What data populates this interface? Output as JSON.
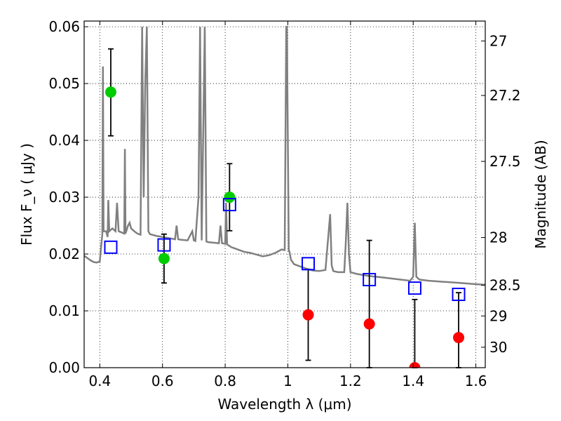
{
  "chart_data": {
    "type": "scatter",
    "xlabel": "Wavelength λ (μm)",
    "ylabel": "Flux F_ν ( μJy )",
    "y2label": "Magnitude (AB)",
    "xlim": [
      0.35,
      1.63
    ],
    "ylim": [
      0.0,
      0.061
    ],
    "xticks": [
      0.4,
      0.6,
      0.8,
      1.0,
      1.2,
      1.4,
      1.6
    ],
    "xtick_labels": [
      "0.4",
      "0.6",
      "0.8",
      "1",
      "1.2",
      "1.4",
      "1.6"
    ],
    "yticks": [
      0.0,
      0.01,
      0.02,
      0.03,
      0.04,
      0.05,
      0.06
    ],
    "ytick_labels": [
      "0.00",
      "0.01",
      "0.02",
      "0.03",
      "0.04",
      "0.05",
      "0.06"
    ],
    "y2ticks": [
      {
        "flux": 0.0575,
        "label": "27"
      },
      {
        "flux": 0.0479,
        "label": "27.2"
      },
      {
        "flux": 0.0363,
        "label": "27.5"
      },
      {
        "flux": 0.0229,
        "label": "28"
      },
      {
        "flux": 0.0145,
        "label": "28.5"
      },
      {
        "flux": 0.0091,
        "label": "29"
      },
      {
        "flux": 0.0036,
        "label": "30"
      }
    ],
    "grid": true,
    "colors": {
      "spectrum": "#808080",
      "green_points": "#00cc00",
      "red_points": "#ff0000",
      "model_squares": "#0000ff",
      "errorbars": "#000000"
    },
    "series": [
      {
        "marker": "green-circle",
        "points": [
          {
            "x": 0.435,
            "y": 0.0485,
            "ylo": 0.0408,
            "yhi": 0.0561
          },
          {
            "x": 0.605,
            "y": 0.0192,
            "ylo": 0.0149,
            "yhi": 0.0235
          },
          {
            "x": 0.814,
            "y": 0.03,
            "ylo": 0.0241,
            "yhi": 0.0359
          }
        ]
      },
      {
        "marker": "red-circle",
        "points": [
          {
            "x": 1.065,
            "y": 0.0093,
            "ylo": 0.0013,
            "yhi": 0.0173
          },
          {
            "x": 1.26,
            "y": 0.0077,
            "ylo": 0.0,
            "yhi": 0.0224
          },
          {
            "x": 1.405,
            "y": 0.0,
            "ylo": 0.0,
            "yhi": 0.012
          },
          {
            "x": 1.545,
            "y": 0.0053,
            "ylo": 0.0,
            "yhi": 0.0132
          }
        ]
      },
      {
        "marker": "blue-open-square",
        "points": [
          {
            "x": 0.435,
            "y": 0.0212
          },
          {
            "x": 0.605,
            "y": 0.0216
          },
          {
            "x": 0.814,
            "y": 0.0287
          },
          {
            "x": 1.065,
            "y": 0.0183
          },
          {
            "x": 1.26,
            "y": 0.0155
          },
          {
            "x": 1.405,
            "y": 0.014
          },
          {
            "x": 1.545,
            "y": 0.0129
          }
        ]
      }
    ],
    "spectrum": {
      "x": [
        0.35,
        0.36,
        0.37,
        0.38,
        0.39,
        0.4,
        0.408,
        0.41,
        0.412,
        0.42,
        0.425,
        0.427,
        0.43,
        0.44,
        0.45,
        0.455,
        0.46,
        0.47,
        0.478,
        0.48,
        0.482,
        0.49,
        0.495,
        0.5,
        0.51,
        0.52,
        0.53,
        0.535,
        0.54,
        0.545,
        0.55,
        0.555,
        0.56,
        0.58,
        0.6,
        0.62,
        0.64,
        0.645,
        0.65,
        0.66,
        0.68,
        0.695,
        0.7,
        0.705,
        0.715,
        0.72,
        0.725,
        0.735,
        0.74,
        0.745,
        0.76,
        0.78,
        0.785,
        0.79,
        0.8,
        0.803,
        0.806,
        0.82,
        0.84,
        0.86,
        0.88,
        0.9,
        0.92,
        0.94,
        0.96,
        0.98,
        0.99,
        0.995,
        0.997,
        1.003,
        1.005,
        1.01,
        1.02,
        1.04,
        1.06,
        1.08,
        1.1,
        1.12,
        1.135,
        1.14,
        1.145,
        1.16,
        1.18,
        1.185,
        1.19,
        1.195,
        1.2,
        1.22,
        1.25,
        1.28,
        1.3,
        1.33,
        1.36,
        1.39,
        1.4,
        1.405,
        1.41,
        1.42,
        1.45,
        1.5,
        1.55,
        1.6,
        1.63
      ],
      "y": [
        0.0197,
        0.0193,
        0.0189,
        0.0186,
        0.0185,
        0.0187,
        0.0235,
        0.053,
        0.024,
        0.024,
        0.023,
        0.0295,
        0.024,
        0.0245,
        0.024,
        0.029,
        0.024,
        0.0238,
        0.0236,
        0.0385,
        0.0236,
        0.025,
        0.0255,
        0.0245,
        0.024,
        0.0236,
        0.0234,
        0.06,
        0.03,
        0.05,
        0.06,
        0.024,
        0.0235,
        0.0232,
        0.023,
        0.0228,
        0.0226,
        0.025,
        0.0226,
        0.0225,
        0.0224,
        0.024,
        0.0224,
        0.0223,
        0.03,
        0.06,
        0.0224,
        0.06,
        0.0222,
        0.0221,
        0.022,
        0.0219,
        0.025,
        0.0219,
        0.0218,
        0.029,
        0.0217,
        0.0212,
        0.0208,
        0.0204,
        0.0202,
        0.0199,
        0.0196,
        0.0198,
        0.0202,
        0.0208,
        0.0207,
        0.06,
        0.06,
        0.0206,
        0.0205,
        0.019,
        0.0182,
        0.0178,
        0.0174,
        0.0171,
        0.017,
        0.0172,
        0.027,
        0.018,
        0.017,
        0.0168,
        0.0168,
        0.022,
        0.029,
        0.02,
        0.0168,
        0.0165,
        0.0162,
        0.016,
        0.0159,
        0.0157,
        0.0155,
        0.0153,
        0.016,
        0.0255,
        0.016,
        0.0155,
        0.0153,
        0.0151,
        0.0149,
        0.0147,
        0.0146
      ]
    }
  }
}
